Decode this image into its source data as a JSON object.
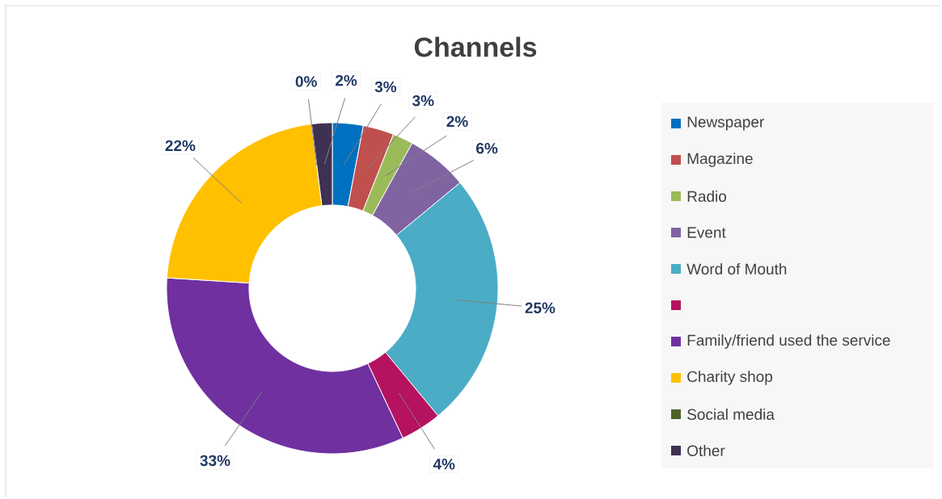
{
  "chart_data": {
    "type": "donut",
    "title": "Channels",
    "categories": [
      "Newspaper",
      "Magazine",
      "Radio",
      "Event",
      "Word of Mouth",
      null,
      "Family/friend used the service",
      "Charity shop",
      "Social media",
      "Other"
    ],
    "values": [
      3,
      3,
      2,
      6,
      25,
      4,
      33,
      22,
      0,
      2
    ],
    "value_labels": [
      "3%",
      "3%",
      "2%",
      "6%",
      "25%",
      "4%",
      "33%",
      "22%",
      "0%",
      "2%"
    ],
    "colors": [
      "#0070c0",
      "#c0504d",
      "#9bbb59",
      "#8064a2",
      "#4bacc6",
      "#b5125f",
      "#7030a0",
      "#ffc000",
      "#4f6228",
      "#3f3151"
    ],
    "legend": "right"
  }
}
